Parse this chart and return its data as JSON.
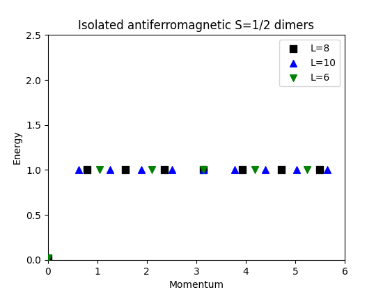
{
  "title": "Isolated antiferromagnetic S=1/2 dimers",
  "xlabel": "Momentum",
  "ylabel": "Energy",
  "xlim": [
    0,
    6
  ],
  "ylim": [
    0.0,
    2.5
  ],
  "yticks": [
    0.0,
    0.5,
    1.0,
    1.5,
    2.0,
    2.5
  ],
  "figsize": [
    5.5,
    4.2
  ],
  "dpi": 100,
  "series": [
    {
      "label": "L=8",
      "color": "black",
      "marker": "s",
      "markersize": 7,
      "momentum": [
        0.0,
        0.7853981633974483,
        1.5707963267948966,
        2.356194490192345,
        3.141592653589793,
        3.9269908169872414,
        4.71238898038469,
        5.497787143782138
      ],
      "energy": [
        0.02,
        1.0,
        1.0,
        1.0,
        1.0,
        1.0,
        1.0,
        1.0
      ]
    },
    {
      "label": "L=10",
      "color": "blue",
      "marker": "^",
      "markersize": 7,
      "momentum": [
        0.6283185307179586,
        1.2566370614359172,
        1.8849555921538759,
        2.5132741228718345,
        3.141592653589793,
        3.7699111843077517,
        4.39822971502571,
        5.026548245743669,
        5.654866776461628
      ],
      "energy": [
        1.0,
        1.0,
        1.0,
        1.0,
        1.0,
        1.0,
        1.0,
        1.0,
        1.0
      ]
    },
    {
      "label": "L=6",
      "color": "green",
      "marker": "v",
      "markersize": 7,
      "momentum": [
        0.0,
        1.0471975511965976,
        2.0943951023931953,
        3.141592653589793,
        4.1887902047863905,
        5.235987755982988
      ],
      "energy": [
        0.02,
        1.0,
        1.0,
        1.0,
        1.0,
        1.0
      ]
    }
  ]
}
